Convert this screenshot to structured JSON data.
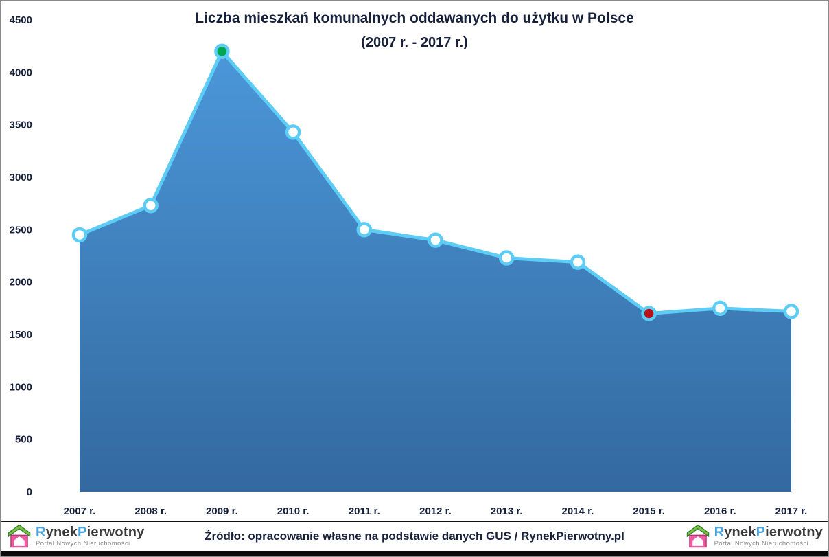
{
  "chart_data": {
    "type": "area",
    "title": "Liczba mieszkań komunalnych oddawanych do użytku w Polsce",
    "subtitle": "(2007 r. - 2017 r.)",
    "categories": [
      "2007 r.",
      "2008 r.",
      "2009 r.",
      "2010 r.",
      "2011 r.",
      "2012 r.",
      "2013 r.",
      "2014 r.",
      "2015 r.",
      "2016 r.",
      "2017 r."
    ],
    "values": [
      2450,
      2730,
      4200,
      3430,
      2500,
      2400,
      2230,
      2190,
      1700,
      1750,
      1720
    ],
    "ylim": [
      0,
      4500
    ],
    "ytick_step": 500,
    "xlabel": "",
    "ylabel": "",
    "grid": false,
    "legend_position": "none",
    "marker_fills": [
      "#ffffff",
      "#ffffff",
      "#00a651",
      "#ffffff",
      "#ffffff",
      "#ffffff",
      "#ffffff",
      "#ffffff",
      "#b5121b",
      "#ffffff",
      "#ffffff"
    ],
    "annotations": {
      "max_point": {
        "category": "2009 r.",
        "value": 4200,
        "marker_color": "#00a651"
      },
      "min_point": {
        "category": "2015 r.",
        "value": 1700,
        "marker_color": "#b5121b"
      }
    },
    "colors": {
      "area_top": "#4b97d9",
      "area_bottom": "#33699f",
      "line": "#5ecdf6",
      "text": "#17213c"
    }
  },
  "footer": {
    "source": "Źródło: opracowanie własne na podstawie danych GUS / RynekPierwotny.pl",
    "logo": {
      "word1": "Rynek",
      "word2": "Pierwotny",
      "tagline": "Portal Nowych Nieruchomości",
      "accent_color": "#4aa3df"
    }
  }
}
